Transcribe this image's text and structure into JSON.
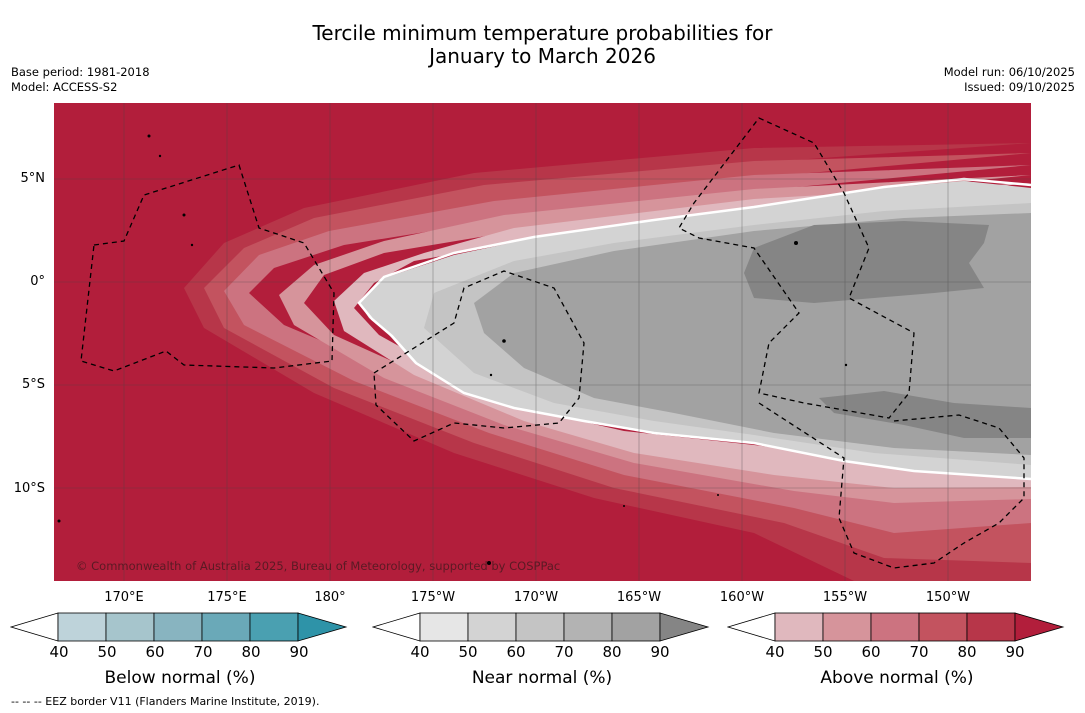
{
  "title": {
    "line1": "Tercile minimum temperature probabilities for",
    "line2": "January to March 2026"
  },
  "meta": {
    "base_period": "Base period: 1981-2018",
    "model": "Model: ACCESS-S2",
    "model_run": "Model run: 06/10/2025",
    "issued": "Issued: 09/10/2025"
  },
  "map": {
    "lat_labels": [
      "5°N",
      "0°",
      "5°S",
      "10°S"
    ],
    "lon_labels": [
      "170°E",
      "175°E",
      "180°",
      "175°W",
      "170°W",
      "165°W",
      "160°W",
      "155°W",
      "150°W"
    ],
    "copyright": "© Commonwealth of Australia 2025, Bureau of Meteorology, supported by COSPPac"
  },
  "colorbars": {
    "below": {
      "label": "Below normal (%)",
      "ticks": [
        "40",
        "50",
        "60",
        "70",
        "80",
        "90"
      ],
      "colors": [
        "#ffffff",
        "#bed3da",
        "#a6c5cc",
        "#88b4c0",
        "#6aa9b8",
        "#4aa0b1",
        "#2e93a8"
      ]
    },
    "near": {
      "label": "Near normal (%)",
      "ticks": [
        "40",
        "50",
        "60",
        "70",
        "80",
        "90"
      ],
      "colors": [
        "#ffffff",
        "#e6e6e6",
        "#d3d3d3",
        "#c4c4c4",
        "#b3b3b3",
        "#a2a2a2",
        "#858585"
      ]
    },
    "above": {
      "label": "Above normal (%)",
      "ticks": [
        "40",
        "50",
        "60",
        "70",
        "80",
        "90"
      ],
      "colors": [
        "#ffffff",
        "#e0b8be",
        "#d6949b",
        "#cc7380",
        "#c3535f",
        "#b73649",
        "#b21e3b"
      ]
    }
  },
  "footnote": "--  --  -- EEZ border V11 (Flanders Marine Institute, 2019)."
}
